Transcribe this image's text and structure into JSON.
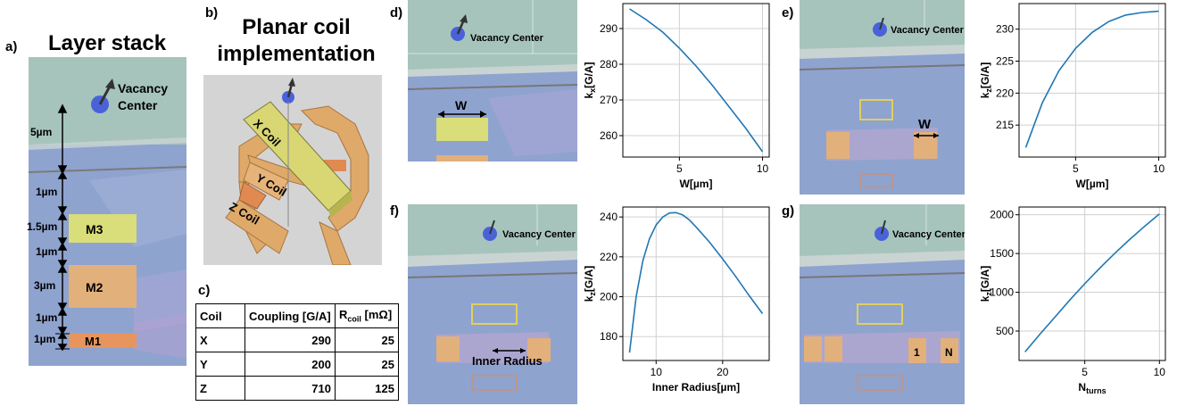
{
  "panel_labels": {
    "a": "a)",
    "b": "b)",
    "c": "c)",
    "d": "d)",
    "e": "e)",
    "f": "f)",
    "g": "g)"
  },
  "layer_stack": {
    "title": "Layer stack",
    "vacancy_label": [
      "Vacancy",
      "Center"
    ],
    "dims": [
      "5µm",
      "1µm",
      "1.5µm",
      "1µm",
      "3µm",
      "1µm",
      "1µm"
    ],
    "layers": [
      "M3",
      "M2",
      "M1"
    ],
    "colors": {
      "vacancy_region": "#9fc0b6",
      "substrate": "#8fa3cf",
      "m3": "#d9dd7a",
      "m2": "#e2b07b",
      "m1": "#e8955d"
    }
  },
  "planar_coil": {
    "title": [
      "Planar coil",
      "implementation"
    ],
    "coils": [
      "X Coil",
      "Y Coil",
      "Z Coil"
    ]
  },
  "coil_table": {
    "headers": {
      "coil": "Coil",
      "coupling": "Coupling [G/A]",
      "r_main": "R",
      "r_sub": "coil",
      "r_unit": "[mΩ]"
    },
    "rows": [
      {
        "coil": "X",
        "coupling": "290",
        "r": "25"
      },
      {
        "coil": "Y",
        "coupling": "200",
        "r": "25"
      },
      {
        "coil": "Z",
        "coupling": "710",
        "r": "125"
      }
    ]
  },
  "renders": {
    "vacancy_label": "Vacancy Center",
    "d_annotation": "W",
    "e_annotation": "W",
    "f_annotation": "Inner Radius",
    "g_turn_labels": [
      "1",
      "N"
    ]
  },
  "chart_data": [
    {
      "id": "d",
      "type": "line",
      "ylabel_main": "k",
      "ylabel_sub": "x",
      "ylabel_unit": "[G/A]",
      "xlabel": "W[µm]",
      "xlim": [
        1.6,
        10.4
      ],
      "ylim": [
        254,
        297
      ],
      "xticks": [
        5,
        10
      ],
      "yticks": [
        260,
        270,
        280,
        290
      ],
      "grid": true,
      "color": "#1f77b4",
      "x": [
        2,
        3,
        4,
        5,
        6,
        7,
        8,
        9,
        10
      ],
      "y": [
        295.5,
        292.5,
        289,
        284.5,
        279.5,
        274,
        268,
        262,
        255.5
      ]
    },
    {
      "id": "e",
      "type": "line",
      "ylabel_main": "k",
      "ylabel_sub": "z",
      "ylabel_unit": "[G/A]",
      "xlabel": "W[µm]",
      "xlim": [
        1.6,
        10.4
      ],
      "ylim": [
        210,
        234
      ],
      "xticks": [
        5,
        10
      ],
      "yticks": [
        215,
        220,
        225,
        230
      ],
      "grid": true,
      "color": "#1f77b4",
      "x": [
        2,
        3,
        4,
        5,
        6,
        7,
        8,
        9,
        10
      ],
      "y": [
        211.5,
        218.5,
        223.5,
        227,
        229.5,
        231.2,
        232.2,
        232.6,
        232.8
      ]
    },
    {
      "id": "f",
      "type": "line",
      "ylabel_main": "k",
      "ylabel_sub": "z",
      "ylabel_unit": "[G/A]",
      "xlabel": "Inner Radius[µm]",
      "xlim": [
        5,
        27
      ],
      "ylim": [
        168,
        245
      ],
      "xticks": [
        10,
        20
      ],
      "yticks": [
        180,
        200,
        220,
        240
      ],
      "grid": true,
      "color": "#1f77b4",
      "x": [
        6,
        7,
        8,
        9,
        10,
        11,
        12,
        13,
        14,
        15,
        16,
        18,
        20,
        22,
        24,
        26
      ],
      "y": [
        172,
        200,
        218,
        229,
        236,
        240,
        242,
        242.2,
        241,
        238.5,
        235,
        227.5,
        219,
        210,
        200.5,
        191.5
      ]
    },
    {
      "id": "g",
      "type": "line",
      "ylabel_main": "k",
      "ylabel_sub": "z",
      "ylabel_unit": "[G/A]",
      "xlabel_main": "N",
      "xlabel_sub": "turns",
      "xlim": [
        0.6,
        10.4
      ],
      "ylim": [
        120,
        2100
      ],
      "xticks": [
        5,
        10
      ],
      "yticks": [
        500,
        1000,
        1500,
        2000
      ],
      "grid": true,
      "color": "#1f77b4",
      "x": [
        1,
        2,
        3,
        4,
        5,
        6,
        7,
        8,
        9,
        10
      ],
      "y": [
        230,
        460,
        680,
        900,
        1110,
        1310,
        1500,
        1680,
        1850,
        2010
      ]
    }
  ]
}
